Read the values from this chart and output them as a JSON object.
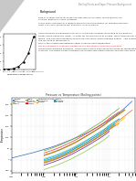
{
  "title": "Boiling Points and Vapor Pressure Background",
  "background_color": "#ffffff",
  "page_width": 1.49,
  "page_height": 1.98,
  "small_chart": {
    "x": [
      0,
      20,
      40,
      60,
      80,
      100,
      120
    ],
    "y": [
      0.02,
      0.03,
      0.07,
      0.19,
      0.47,
      1.0,
      2.0
    ],
    "xlabel": "Temperature (degrees Celsius)",
    "ylabel": "Vapor\nPressure\n(atm)"
  },
  "main_chart": {
    "title": "Pressure vs Temperature (Boiling points)",
    "xlabel": "Pressure (bars)",
    "ylabel": "Temperature",
    "series": [
      {
        "name": "Benzene",
        "color": "#e07b39",
        "x": [
          0.1,
          0.2,
          0.3,
          0.5,
          0.7,
          1.0,
          1.5,
          2.0,
          3.0,
          5.0,
          7.0,
          10.0,
          15.0,
          20.0,
          30.0,
          50.0
        ],
        "y": [
          -10,
          5,
          15,
          30,
          42,
          55,
          68,
          78,
          95,
          115,
          130,
          148,
          165,
          178,
          198,
          224
        ]
      },
      {
        "name": "Water",
        "color": "#4472c4",
        "x": [
          0.01,
          0.05,
          0.1,
          0.2,
          0.5,
          1.0,
          2.0,
          3.0,
          5.0,
          10.0,
          20.0,
          30.0,
          50.0
        ],
        "y": [
          7,
          33,
          46,
          60,
          82,
          100,
          120,
          134,
          152,
          180,
          212,
          234,
          264
        ]
      },
      {
        "name": "Chlorobenzene",
        "color": "#70ad47",
        "x": [
          0.1,
          0.2,
          0.3,
          0.5,
          0.7,
          1.0,
          1.5,
          2.0,
          3.0,
          5.0,
          7.0,
          10.0,
          15.0,
          20.0
        ],
        "y": [
          40,
          55,
          65,
          80,
          90,
          102,
          117,
          128,
          145,
          165,
          180,
          198,
          218,
          232
        ]
      },
      {
        "name": "Ethanol",
        "color": "#ffc000",
        "x": [
          0.1,
          0.2,
          0.3,
          0.5,
          0.7,
          1.0,
          1.5,
          2.0,
          3.0,
          5.0,
          7.0,
          10.0,
          15.0,
          20.0,
          30.0
        ],
        "y": [
          -10,
          2,
          12,
          26,
          36,
          48,
          62,
          72,
          88,
          108,
          122,
          140,
          158,
          170,
          190
        ]
      },
      {
        "name": "Toluene",
        "color": "#ed7d31",
        "x": [
          0.1,
          0.2,
          0.3,
          0.5,
          0.7,
          1.0,
          1.5,
          2.0,
          3.0,
          5.0,
          7.0,
          10.0,
          15.0,
          20.0,
          30.0
        ],
        "y": [
          18,
          33,
          43,
          58,
          68,
          80,
          95,
          106,
          122,
          142,
          156,
          174,
          192,
          205,
          224
        ]
      },
      {
        "name": "n-Propanol",
        "color": "#a9d18e",
        "x": [
          0.1,
          0.2,
          0.3,
          0.5,
          0.7,
          1.0,
          1.5,
          2.0,
          3.0,
          5.0,
          7.0,
          10.0,
          15.0,
          20.0
        ],
        "y": [
          5,
          18,
          28,
          42,
          52,
          64,
          78,
          88,
          104,
          124,
          138,
          155,
          172,
          184
        ]
      },
      {
        "name": "Acetic acid",
        "color": "#ff4444",
        "x": [
          0.1,
          0.2,
          0.3,
          0.5,
          0.7,
          1.0,
          1.5,
          2.0,
          3.0,
          5.0,
          7.0,
          10.0,
          15.0,
          20.0
        ],
        "y": [
          30,
          45,
          55,
          70,
          80,
          92,
          107,
          118,
          134,
          154,
          168,
          186,
          204,
          216
        ]
      },
      {
        "name": "n-Hexane",
        "color": "#7030a0",
        "x": [
          0.1,
          0.2,
          0.3,
          0.5,
          0.7,
          1.0,
          1.5,
          2.0,
          3.0,
          5.0,
          7.0,
          10.0
        ],
        "y": [
          -25,
          -10,
          0,
          14,
          24,
          36,
          50,
          60,
          76,
          96,
          110,
          128
        ]
      },
      {
        "name": "Carbon Tetrachloride",
        "color": "#00b0f0",
        "x": [
          0.1,
          0.2,
          0.3,
          0.5,
          0.7,
          1.0,
          1.5,
          2.0,
          3.0,
          5.0,
          7.0,
          10.0,
          15.0,
          20.0
        ],
        "y": [
          0,
          14,
          24,
          38,
          48,
          60,
          75,
          86,
          102,
          122,
          136,
          154,
          172,
          184
        ]
      },
      {
        "name": "Diethyl ether",
        "color": "#92d050",
        "x": [
          0.1,
          0.2,
          0.3,
          0.5,
          0.7,
          1.0,
          1.5,
          2.0,
          3.0,
          5.0,
          7.0,
          10.0
        ],
        "y": [
          -45,
          -30,
          -20,
          -6,
          4,
          16,
          30,
          40,
          56,
          76,
          90,
          108
        ]
      },
      {
        "name": "Methanol",
        "color": "#ff7f00",
        "x": [
          0.1,
          0.2,
          0.3,
          0.5,
          0.7,
          1.0,
          1.5,
          2.0,
          3.0,
          5.0,
          7.0,
          10.0,
          15.0,
          20.0
        ],
        "y": [
          -15,
          -2,
          8,
          22,
          32,
          44,
          58,
          68,
          84,
          104,
          118,
          135,
          152,
          164
        ]
      },
      {
        "name": "n-Octane",
        "color": "#808000",
        "x": [
          0.1,
          0.2,
          0.3,
          0.5,
          0.7,
          1.0,
          1.5,
          2.0,
          3.0,
          5.0,
          7.0,
          10.0,
          15.0,
          20.0,
          30.0
        ],
        "y": [
          20,
          35,
          45,
          60,
          70,
          82,
          97,
          108,
          124,
          144,
          158,
          176,
          194,
          207,
          226
        ]
      },
      {
        "name": "Isopropanol",
        "color": "#00aadd",
        "x": [
          0.1,
          0.2,
          0.3,
          0.5,
          0.7,
          1.0,
          1.5,
          2.0,
          3.0,
          5.0,
          7.0,
          10.0,
          15.0
        ],
        "y": [
          -5,
          8,
          18,
          32,
          42,
          54,
          68,
          78,
          94,
          114,
          128,
          145,
          162
        ]
      },
      {
        "name": "Chloroform",
        "color": "#7f7f7f",
        "x": [
          0.1,
          0.2,
          0.3,
          0.5,
          0.7,
          1.0,
          1.5,
          2.0,
          3.0,
          5.0,
          7.0,
          10.0,
          15.0
        ],
        "y": [
          -15,
          0,
          10,
          24,
          34,
          46,
          60,
          70,
          86,
          106,
          120,
          138,
          156
        ]
      }
    ]
  }
}
